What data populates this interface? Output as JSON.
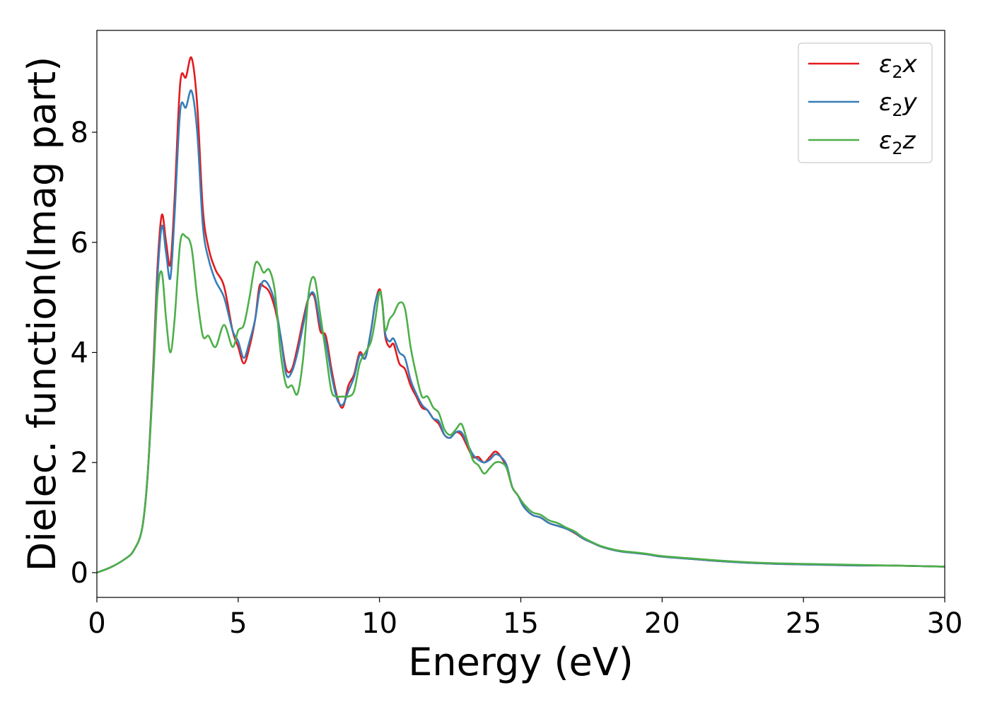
{
  "chart_data": {
    "type": "line",
    "title": "",
    "xlabel": "Energy (eV)",
    "ylabel": "Dielec. function(Imag part)",
    "xlim": [
      0,
      30
    ],
    "ylim": [
      -0.45,
      9.85
    ],
    "xticks": [
      0,
      5,
      10,
      15,
      20,
      25,
      30
    ],
    "yticks": [
      0,
      2,
      4,
      6,
      8
    ],
    "grid": false,
    "legend_position": "top-right",
    "series": [
      {
        "name": "ε2x",
        "legend_base": "ε",
        "legend_sub": "2",
        "legend_suffix": "x",
        "color": "#e41a1c",
        "x": [
          0,
          0.5,
          1,
          1.3,
          1.6,
          1.8,
          2.0,
          2.15,
          2.3,
          2.45,
          2.6,
          2.75,
          2.95,
          3.15,
          3.35,
          3.55,
          3.75,
          3.95,
          4.2,
          4.5,
          4.8,
          5.0,
          5.2,
          5.4,
          5.6,
          5.75,
          5.9,
          6.1,
          6.3,
          6.5,
          6.7,
          6.9,
          7.1,
          7.3,
          7.5,
          7.7,
          7.9,
          8.1,
          8.3,
          8.5,
          8.7,
          8.9,
          9.1,
          9.3,
          9.5,
          9.7,
          9.85,
          10.0,
          10.1,
          10.2,
          10.35,
          10.5,
          10.7,
          10.9,
          11.1,
          11.3,
          11.5,
          11.7,
          11.9,
          12.1,
          12.3,
          12.5,
          12.7,
          12.9,
          13.1,
          13.3,
          13.5,
          13.7,
          13.9,
          14.1,
          14.3,
          14.5,
          14.7,
          14.9,
          15.1,
          15.4,
          15.7,
          16.0,
          16.3,
          16.6,
          16.9,
          17.2,
          17.5,
          17.8,
          18.2,
          18.6,
          19.0,
          19.5,
          20,
          21,
          22,
          23,
          24,
          25,
          26,
          27,
          28,
          29,
          30
        ],
        "y": [
          0,
          0.1,
          0.25,
          0.4,
          0.8,
          1.8,
          3.8,
          5.6,
          6.5,
          6.0,
          5.6,
          6.8,
          8.9,
          9.0,
          9.35,
          8.5,
          6.6,
          5.9,
          5.5,
          5.2,
          4.4,
          4.1,
          3.8,
          4.1,
          4.6,
          5.2,
          5.2,
          5.1,
          4.8,
          4.3,
          3.7,
          3.7,
          4.1,
          4.6,
          5.0,
          5.0,
          4.4,
          4.3,
          3.7,
          3.2,
          3.0,
          3.4,
          3.6,
          4.0,
          3.9,
          4.4,
          4.9,
          5.15,
          4.9,
          4.3,
          4.1,
          4.15,
          3.8,
          3.7,
          3.4,
          3.2,
          3.0,
          2.95,
          2.8,
          2.7,
          2.5,
          2.45,
          2.55,
          2.5,
          2.3,
          2.1,
          2.1,
          2.0,
          2.1,
          2.2,
          2.1,
          1.9,
          1.55,
          1.4,
          1.2,
          1.05,
          1.0,
          0.9,
          0.85,
          0.8,
          0.72,
          0.62,
          0.55,
          0.48,
          0.42,
          0.38,
          0.36,
          0.33,
          0.29,
          0.25,
          0.21,
          0.18,
          0.16,
          0.15,
          0.14,
          0.13,
          0.13,
          0.12,
          0.11
        ]
      },
      {
        "name": "ε2y",
        "legend_base": "ε",
        "legend_sub": "2",
        "legend_suffix": "y",
        "color": "#377eb8",
        "x": [
          0,
          0.5,
          1,
          1.3,
          1.6,
          1.8,
          2.0,
          2.15,
          2.3,
          2.45,
          2.6,
          2.75,
          2.95,
          3.15,
          3.35,
          3.55,
          3.75,
          3.95,
          4.2,
          4.5,
          4.8,
          5.0,
          5.2,
          5.4,
          5.6,
          5.75,
          5.9,
          6.1,
          6.3,
          6.5,
          6.7,
          6.9,
          7.1,
          7.3,
          7.5,
          7.7,
          7.9,
          8.1,
          8.3,
          8.5,
          8.7,
          8.9,
          9.1,
          9.3,
          9.5,
          9.7,
          9.85,
          10.0,
          10.1,
          10.2,
          10.35,
          10.5,
          10.7,
          10.9,
          11.1,
          11.3,
          11.5,
          11.7,
          11.9,
          12.1,
          12.3,
          12.5,
          12.7,
          12.9,
          13.1,
          13.3,
          13.5,
          13.7,
          13.9,
          14.1,
          14.3,
          14.5,
          14.7,
          14.9,
          15.1,
          15.4,
          15.7,
          16.0,
          16.3,
          16.6,
          16.9,
          17.2,
          17.5,
          17.8,
          18.2,
          18.6,
          19.0,
          19.5,
          20,
          21,
          22,
          23,
          24,
          25,
          26,
          27,
          28,
          29,
          30
        ],
        "y": [
          0,
          0.1,
          0.25,
          0.4,
          0.8,
          1.8,
          3.7,
          5.4,
          6.3,
          5.8,
          5.35,
          6.5,
          8.4,
          8.45,
          8.75,
          8.0,
          6.3,
          5.7,
          5.3,
          5.0,
          4.4,
          4.2,
          3.9,
          4.2,
          4.6,
          5.1,
          5.3,
          5.2,
          4.9,
          4.3,
          3.6,
          3.65,
          4.0,
          4.5,
          5.0,
          5.05,
          4.5,
          4.2,
          3.6,
          3.15,
          3.05,
          3.3,
          3.55,
          3.95,
          3.9,
          4.4,
          4.9,
          5.1,
          4.9,
          4.35,
          4.2,
          4.25,
          4.0,
          3.9,
          3.5,
          3.25,
          3.05,
          2.95,
          2.8,
          2.75,
          2.5,
          2.45,
          2.55,
          2.55,
          2.35,
          2.15,
          2.05,
          2.0,
          2.05,
          2.15,
          2.1,
          1.95,
          1.55,
          1.4,
          1.2,
          1.05,
          1.0,
          0.9,
          0.85,
          0.8,
          0.73,
          0.62,
          0.55,
          0.48,
          0.42,
          0.38,
          0.36,
          0.33,
          0.29,
          0.25,
          0.21,
          0.18,
          0.16,
          0.15,
          0.14,
          0.13,
          0.13,
          0.12,
          0.11
        ]
      },
      {
        "name": "ε2z",
        "legend_base": "ε",
        "legend_sub": "2",
        "legend_suffix": "z",
        "color": "#4daf4a",
        "x": [
          0,
          0.5,
          1,
          1.3,
          1.6,
          1.8,
          2.0,
          2.15,
          2.3,
          2.45,
          2.6,
          2.75,
          2.95,
          3.15,
          3.35,
          3.55,
          3.75,
          3.95,
          4.2,
          4.5,
          4.8,
          5.0,
          5.2,
          5.4,
          5.6,
          5.75,
          5.9,
          6.1,
          6.3,
          6.5,
          6.7,
          6.9,
          7.1,
          7.3,
          7.5,
          7.7,
          7.9,
          8.1,
          8.3,
          8.5,
          8.7,
          8.9,
          9.1,
          9.3,
          9.5,
          9.7,
          9.85,
          10.0,
          10.1,
          10.2,
          10.35,
          10.5,
          10.7,
          10.9,
          11.1,
          11.3,
          11.5,
          11.7,
          11.9,
          12.1,
          12.3,
          12.5,
          12.7,
          12.9,
          13.1,
          13.3,
          13.5,
          13.7,
          13.9,
          14.1,
          14.3,
          14.5,
          14.7,
          14.9,
          15.1,
          15.4,
          15.7,
          16.0,
          16.3,
          16.6,
          16.9,
          17.2,
          17.5,
          17.8,
          18.2,
          18.6,
          19.0,
          19.5,
          20,
          21,
          22,
          23,
          24,
          25,
          26,
          27,
          28,
          29,
          30
        ],
        "y": [
          0,
          0.1,
          0.25,
          0.4,
          0.8,
          1.8,
          3.6,
          5.1,
          5.45,
          4.6,
          4.0,
          4.6,
          6.0,
          6.1,
          5.9,
          5.0,
          4.3,
          4.3,
          4.1,
          4.5,
          4.1,
          4.4,
          4.5,
          5.0,
          5.6,
          5.6,
          5.45,
          5.5,
          5.1,
          4.0,
          3.4,
          3.4,
          3.25,
          3.9,
          5.1,
          5.35,
          4.7,
          4.0,
          3.3,
          3.2,
          3.2,
          3.2,
          3.3,
          3.8,
          4.0,
          4.2,
          4.6,
          5.1,
          4.9,
          4.4,
          4.6,
          4.7,
          4.9,
          4.8,
          4.1,
          3.6,
          3.2,
          3.2,
          3.0,
          2.9,
          2.6,
          2.5,
          2.6,
          2.7,
          2.4,
          2.05,
          1.95,
          1.8,
          1.9,
          2.0,
          2.0,
          1.9,
          1.55,
          1.4,
          1.25,
          1.1,
          1.05,
          0.95,
          0.9,
          0.82,
          0.75,
          0.64,
          0.56,
          0.49,
          0.43,
          0.39,
          0.37,
          0.34,
          0.3,
          0.26,
          0.22,
          0.19,
          0.17,
          0.16,
          0.15,
          0.14,
          0.13,
          0.12,
          0.11
        ]
      }
    ]
  }
}
